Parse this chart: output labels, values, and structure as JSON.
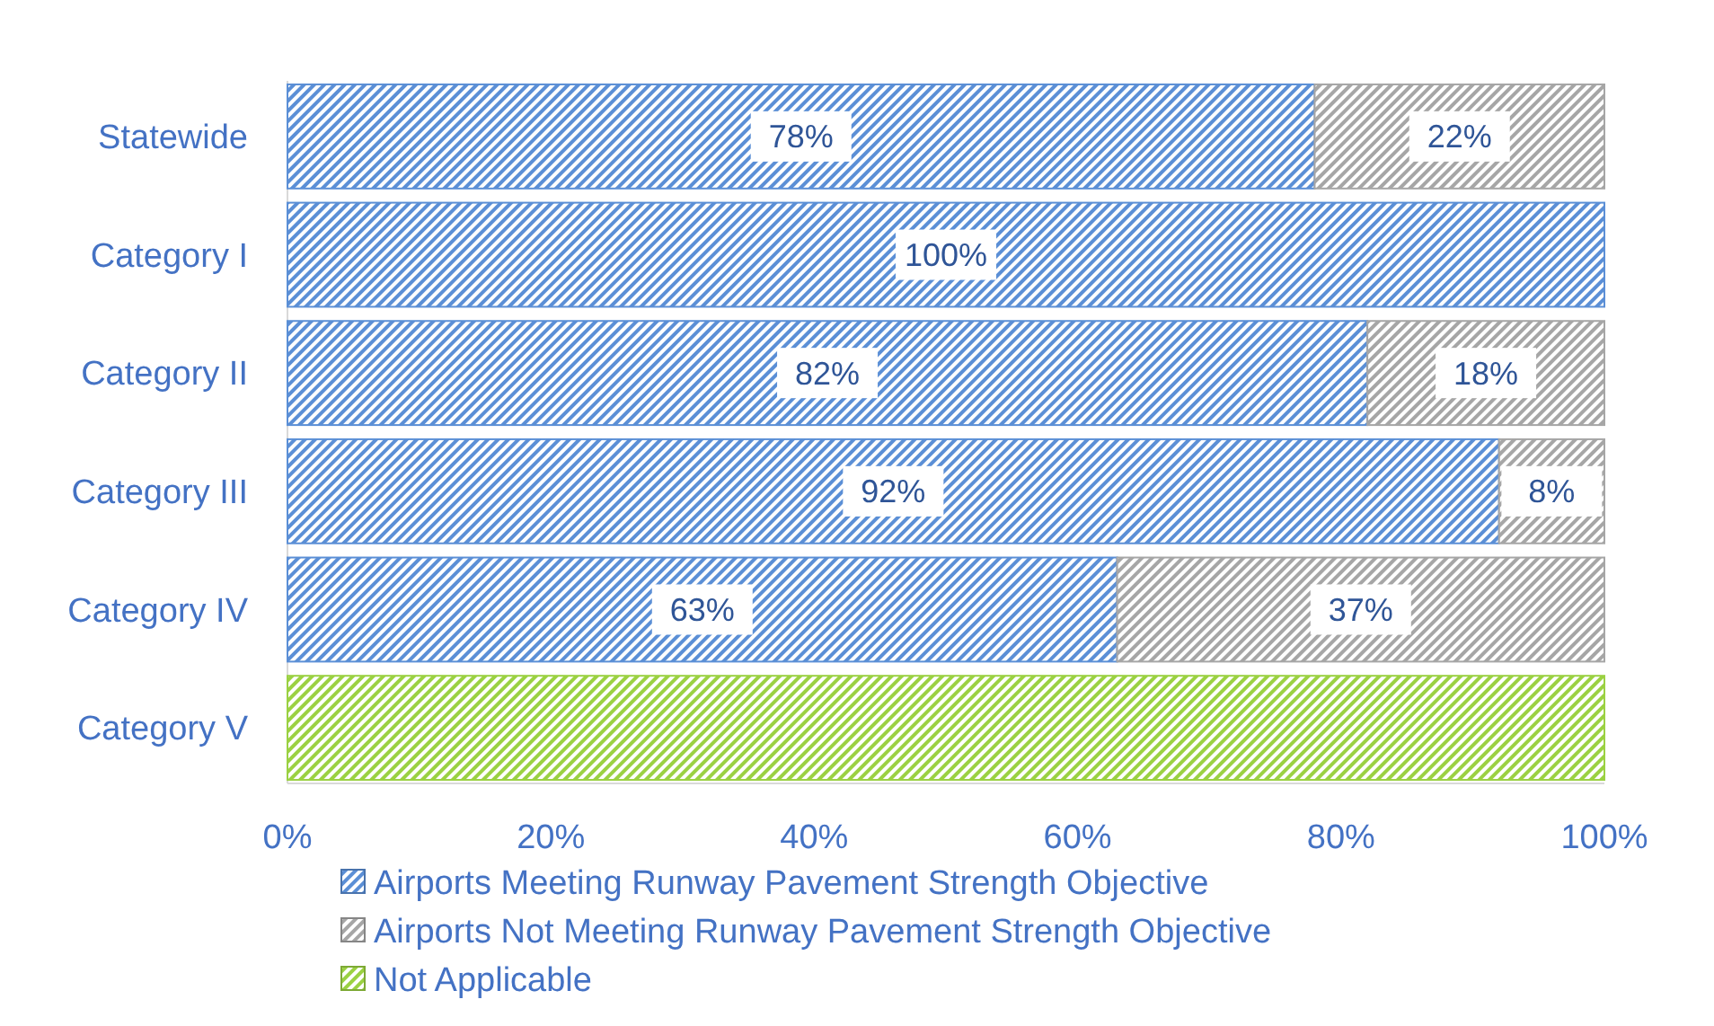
{
  "chart_data": {
    "type": "bar",
    "orientation": "horizontal",
    "stacked": true,
    "categories": [
      "Statewide",
      "Category I",
      "Category II",
      "Category III",
      "Category IV",
      "Category V"
    ],
    "series": [
      {
        "name": "Airports Meeting Runway Pavement Strength Objective",
        "color": "#5b8fd6",
        "values": [
          78,
          100,
          82,
          92,
          63,
          0
        ],
        "value_labels": [
          "78%",
          "100%",
          "82%",
          "92%",
          "63%",
          null
        ]
      },
      {
        "name": "Airports Not Meeting Runway Pavement Strength Objective",
        "color": "#a6a6a6",
        "values": [
          22,
          0,
          18,
          8,
          37,
          0
        ],
        "value_labels": [
          "22%",
          null,
          "18%",
          "8%",
          "37%",
          null
        ]
      },
      {
        "name": "Not Applicable",
        "color": "#9bd142",
        "values": [
          0,
          0,
          0,
          0,
          0,
          100
        ],
        "value_labels": [
          null,
          null,
          null,
          null,
          null,
          null
        ]
      }
    ],
    "xlim": [
      0,
      100
    ],
    "xticks": [
      {
        "value": 0,
        "label": "0%"
      },
      {
        "value": 20,
        "label": "20%"
      },
      {
        "value": 40,
        "label": "40%"
      },
      {
        "value": 60,
        "label": "60%"
      },
      {
        "value": 80,
        "label": "80%"
      },
      {
        "value": 100,
        "label": "100%"
      }
    ],
    "legend": "bottom",
    "grid": false
  }
}
